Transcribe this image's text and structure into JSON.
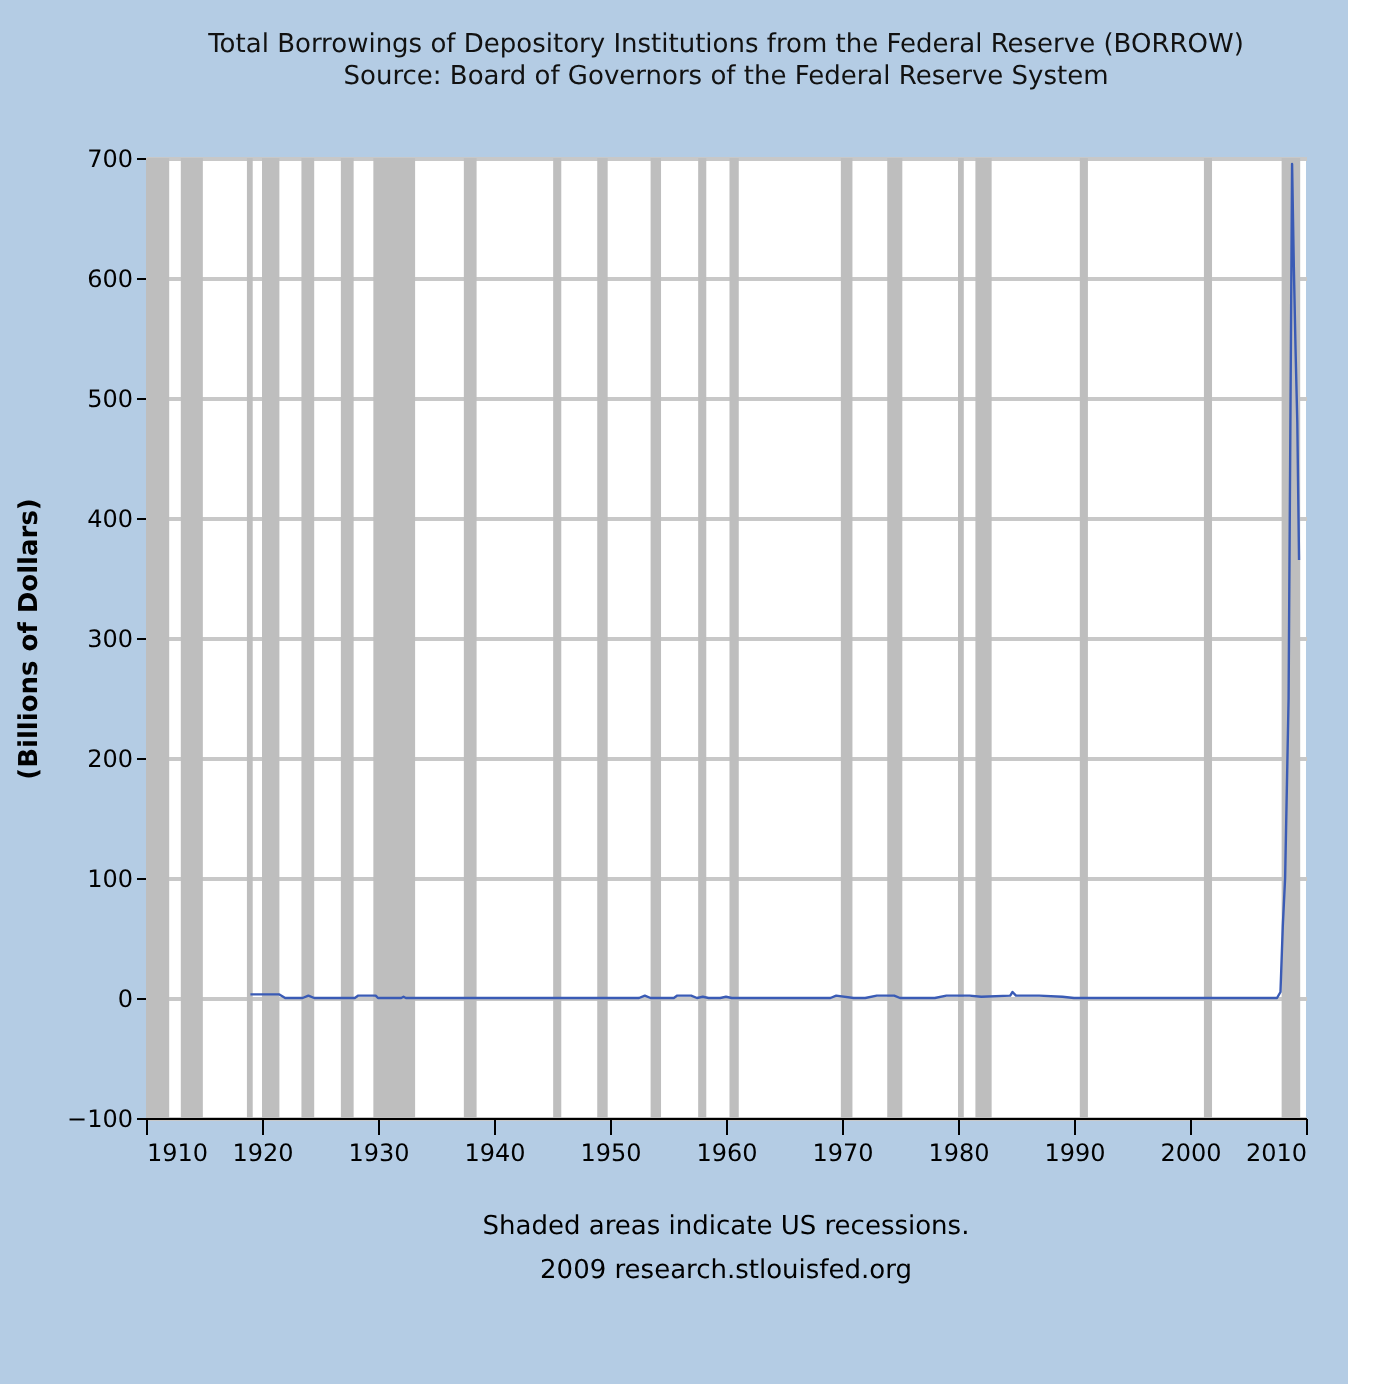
{
  "chart_data": {
    "type": "line",
    "title": "Total Borrowings of Depository Institutions from the Federal Reserve (BORROW)",
    "subtitle": "Source: Board of Governors of the Federal Reserve System",
    "ylabel": "(Billions of Dollars)",
    "annotations": [
      "Shaded areas indicate US recessions.",
      "2009 research.stlouisfed.org"
    ],
    "xlim": [
      1910,
      2010
    ],
    "xticks": [
      1910,
      1920,
      1930,
      1940,
      1950,
      1960,
      1970,
      1980,
      1990,
      2000,
      2010
    ],
    "ylim": [
      -100,
      700
    ],
    "yticks": [
      -100,
      0,
      100,
      200,
      300,
      400,
      500,
      600,
      700
    ],
    "grid": "y",
    "series": [
      {
        "color": "#3a5bb5",
        "x": [
          1919,
          1921.5,
          1922,
          1923.5,
          1924,
          1924.5,
          1928,
          1928.3,
          1929.8,
          1930,
          1932,
          1932.2,
          1932.4,
          1952.5,
          1953,
          1953.5,
          1955.5,
          1955.8,
          1957,
          1957.5,
          1958,
          1958.5,
          1959.5,
          1960,
          1960.5,
          1969,
          1969.5,
          1971,
          1972,
          1973,
          1974.5,
          1975,
          1978,
          1979,
          1981,
          1982,
          1984.5,
          1984.7,
          1985,
          1987,
          1989,
          1990,
          1991,
          2007.5,
          2007.8,
          2008,
          2008.2,
          2008.5,
          2008.8,
          2008.95,
          2009.1,
          2009.25,
          2009.4
        ],
        "values": [
          3,
          3,
          0,
          0,
          2,
          0,
          0,
          2,
          2,
          0,
          0,
          1,
          0,
          0,
          2,
          0,
          0,
          2,
          2,
          0,
          1,
          0,
          0,
          1,
          0,
          0,
          2,
          0,
          0,
          2,
          2,
          0,
          0,
          2,
          2,
          1,
          2,
          5,
          2,
          2,
          1,
          0,
          0,
          0,
          5,
          60,
          100,
          250,
          695,
          610,
          540,
          480,
          365
        ]
      }
    ],
    "bands": [
      {
        "axis": "x",
        "from": 1910.0,
        "to": 1912.0,
        "color": "#bebebe"
      },
      {
        "axis": "x",
        "from": 1913.0,
        "to": 1914.9,
        "color": "#bebebe"
      },
      {
        "axis": "x",
        "from": 1918.7,
        "to": 1919.2,
        "color": "#bebebe"
      },
      {
        "axis": "x",
        "from": 1920.0,
        "to": 1921.5,
        "color": "#bebebe"
      },
      {
        "axis": "x",
        "from": 1923.4,
        "to": 1924.5,
        "color": "#bebebe"
      },
      {
        "axis": "x",
        "from": 1926.8,
        "to": 1927.9,
        "color": "#bebebe"
      },
      {
        "axis": "x",
        "from": 1929.6,
        "to": 1933.2,
        "color": "#bebebe"
      },
      {
        "axis": "x",
        "from": 1937.4,
        "to": 1938.5,
        "color": "#bebebe"
      },
      {
        "axis": "x",
        "from": 1945.1,
        "to": 1945.8,
        "color": "#bebebe"
      },
      {
        "axis": "x",
        "from": 1948.9,
        "to": 1949.8,
        "color": "#bebebe"
      },
      {
        "axis": "x",
        "from": 1953.5,
        "to": 1954.4,
        "color": "#bebebe"
      },
      {
        "axis": "x",
        "from": 1957.6,
        "to": 1958.3,
        "color": "#bebebe"
      },
      {
        "axis": "x",
        "from": 1960.3,
        "to": 1961.1,
        "color": "#bebebe"
      },
      {
        "axis": "x",
        "from": 1969.9,
        "to": 1970.9,
        "color": "#bebebe"
      },
      {
        "axis": "x",
        "from": 1973.9,
        "to": 1975.2,
        "color": "#bebebe"
      },
      {
        "axis": "x",
        "from": 1980.0,
        "to": 1980.5,
        "color": "#bebebe"
      },
      {
        "axis": "x",
        "from": 1981.5,
        "to": 1982.9,
        "color": "#bebebe"
      },
      {
        "axis": "x",
        "from": 1990.5,
        "to": 1991.2,
        "color": "#bebebe"
      },
      {
        "axis": "x",
        "from": 2001.2,
        "to": 2001.9,
        "color": "#bebebe"
      },
      {
        "axis": "x",
        "from": 2007.9,
        "to": 2009.5,
        "color": "#bebebe"
      }
    ]
  }
}
